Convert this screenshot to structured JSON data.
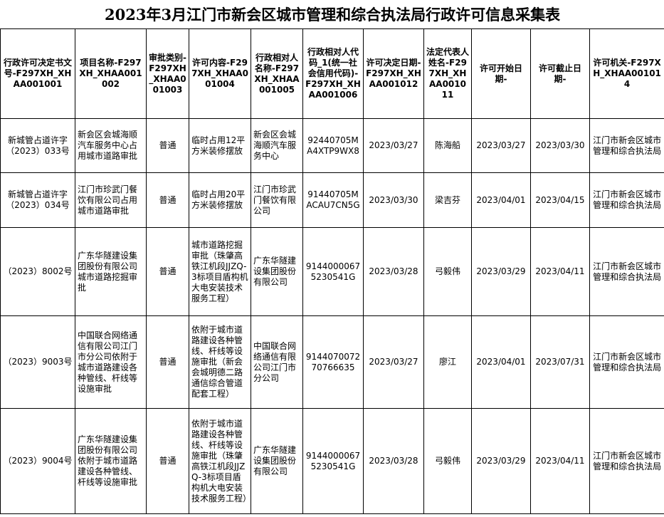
{
  "title": "2023年3月江门市新会区城市管理和综合执法局行政许可信息采集表",
  "table": {
    "headers": [
      "行政许可决定书文号-F297XH_XHAA001001",
      "项目名称-F297XH_XHAA001002",
      "审批类别-F297XH_XHAA001003",
      "许可内容-F297XH_XHAA001004",
      "行政相对人名称-F297XH_XHAA001005",
      "行政相对人代码_1(统一社会信用代码)-F297XH_XHAA001006",
      "许可决定日期-F297XH_XHAA001012",
      "法定代表人姓名-F297XH_XHAA001011",
      "许可开始日期-",
      "许可截止日期-",
      "许可机关-F297XH_XHAA001014"
    ],
    "rows": [
      [
        "新城管占道许字（2023）033号",
        "新会区会城海顺汽车服务中心占用城市道路审批",
        "普通",
        "临时占用12平方米装修摆放",
        "新会区会城海顺汽车服务中心",
        "92440705MA4XTP9WX8",
        "2023/03/27",
        "陈海船",
        "2023/03/27",
        "2023/03/30",
        "江门市新会区城市管理和综合执法局"
      ],
      [
        "新城管占道许字（2023）034号",
        "江门市珍武门餐饮有限公司占用城市道路审批",
        "普通",
        "临时占用20平方米装修摆放",
        "江门市珍武门餐饮有限公司",
        "91440705MACAU7CN5G",
        "2023/03/30",
        "梁吉芬",
        "2023/04/01",
        "2023/04/15",
        "江门市新会区城市管理和综合执法局"
      ],
      [
        "（2023）8002号",
        "广东华隧建设集团股份有限公司城市道路挖掘审批",
        "普通",
        "城市道路挖掘审批（珠肇高铁江机段JJZQ-3标项目盾构机大电安装技术服务工程）",
        "广东华隧建设集团股份有限公司",
        "91440000675230541G",
        "2023/03/28",
        "弓毅伟",
        "2023/03/29",
        "2023/04/11",
        "江门市新会区城市管理和综合执法局"
      ],
      [
        "（2023）9003号",
        "中国联合网络通信有限公司江门市分公司依附于城市道路建设各种管线、杆线等设施审批",
        "普通",
        "依附于城市道路建设各种管线、杆线等设施审批（新会会城明德二路通信综合管道配套工程）",
        "中国联合网络通信有限公司江门市分公司",
        "914407007270766635",
        "2023/03/27",
        "廖江",
        "2023/04/01",
        "2023/07/31",
        "江门市新会区城市管理和综合执法局"
      ],
      [
        "（2023）9004号",
        "广东华隧建设集团股份有限公司依附于城市道路建设各种管线、杆线等设施审批",
        "普通",
        "依附于城市道路建设各种管线、杆线等设施审批（珠肇高铁江机段JJZQ-3标项目盾构机大电安装技术服务工程）",
        "广东华隧建设集团股份有限公司",
        "91440000675230541G",
        "2023/03/28",
        "弓毅伟",
        "2023/03/29",
        "2023/04/11",
        "江门市新会区城市管理和综合执法局"
      ]
    ]
  }
}
